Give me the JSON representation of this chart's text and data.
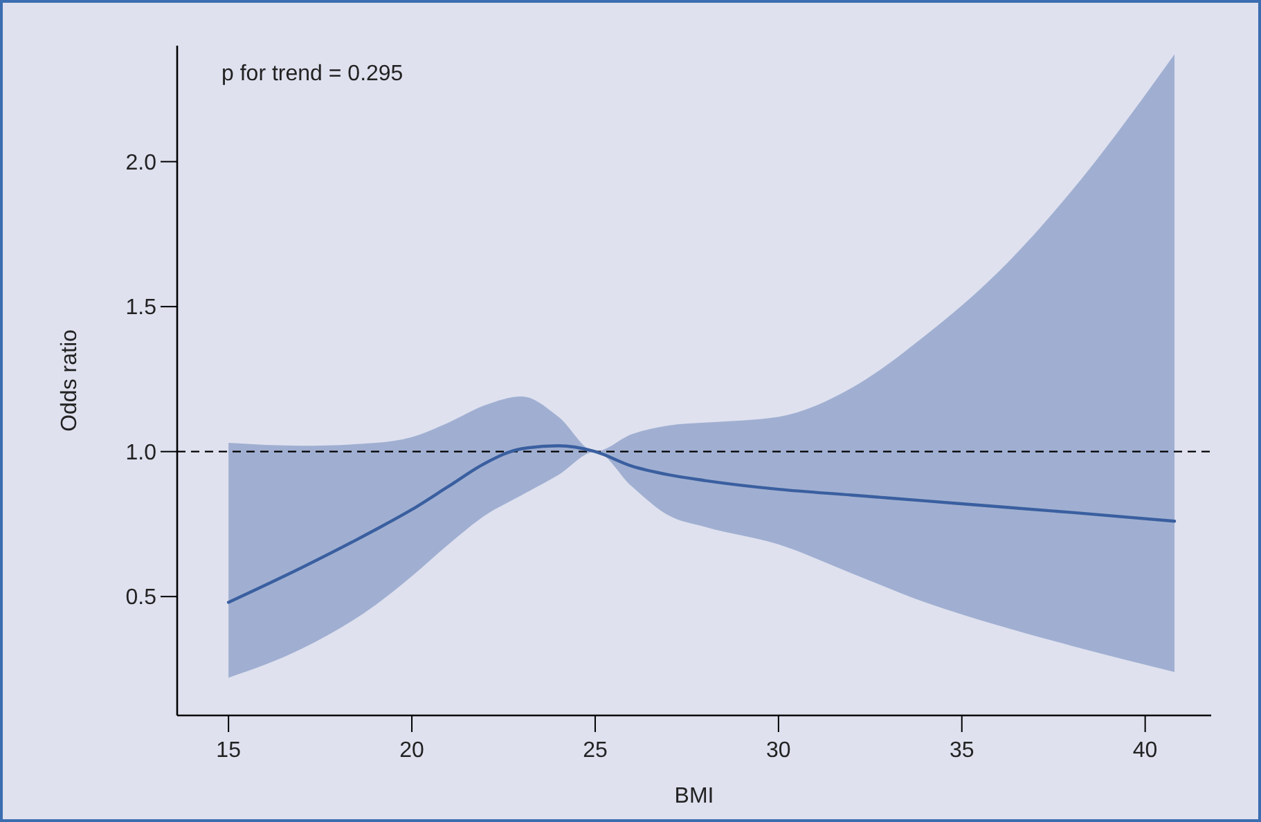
{
  "chart_data": {
    "type": "line",
    "xlabel": "BMI",
    "ylabel": "Odds ratio",
    "annotations": [
      "p for trend = 0.295"
    ],
    "x": [
      15,
      17,
      19,
      20,
      21,
      22,
      23,
      24,
      25,
      26,
      27,
      28,
      30,
      32,
      34,
      36,
      38,
      40.8
    ],
    "series": [
      {
        "color": "#3a5fa0",
        "values": [
          0.48,
          0.6,
          0.73,
          0.8,
          0.88,
          0.96,
          1.01,
          1.02,
          1.0,
          0.95,
          0.92,
          0.9,
          0.87,
          0.85,
          0.83,
          0.81,
          0.79,
          0.76
        ],
        "lower": [
          0.22,
          0.32,
          0.47,
          0.57,
          0.68,
          0.78,
          0.85,
          0.92,
          1.0,
          0.88,
          0.78,
          0.74,
          0.68,
          0.58,
          0.48,
          0.4,
          0.33,
          0.24
        ],
        "upper": [
          1.03,
          1.02,
          1.03,
          1.05,
          1.1,
          1.16,
          1.19,
          1.12,
          1.0,
          1.06,
          1.09,
          1.1,
          1.12,
          1.22,
          1.4,
          1.62,
          1.9,
          2.37
        ]
      }
    ],
    "xlim": [
      13.6,
      41.8
    ],
    "xticks": [
      15,
      20,
      25,
      30,
      35,
      40
    ],
    "ylim": [
      0.09,
      2.4
    ],
    "yticks": [
      {
        "value": 0.5,
        "label": "0.5"
      },
      {
        "value": 1,
        "label": "1.0"
      },
      {
        "value": 1.5,
        "label": "1.5"
      },
      {
        "value": 2,
        "label": "2.0"
      }
    ],
    "ref_lines": [
      {
        "axis": "y",
        "value": 1,
        "line_style": "dashed",
        "color": "#000000"
      }
    ]
  }
}
